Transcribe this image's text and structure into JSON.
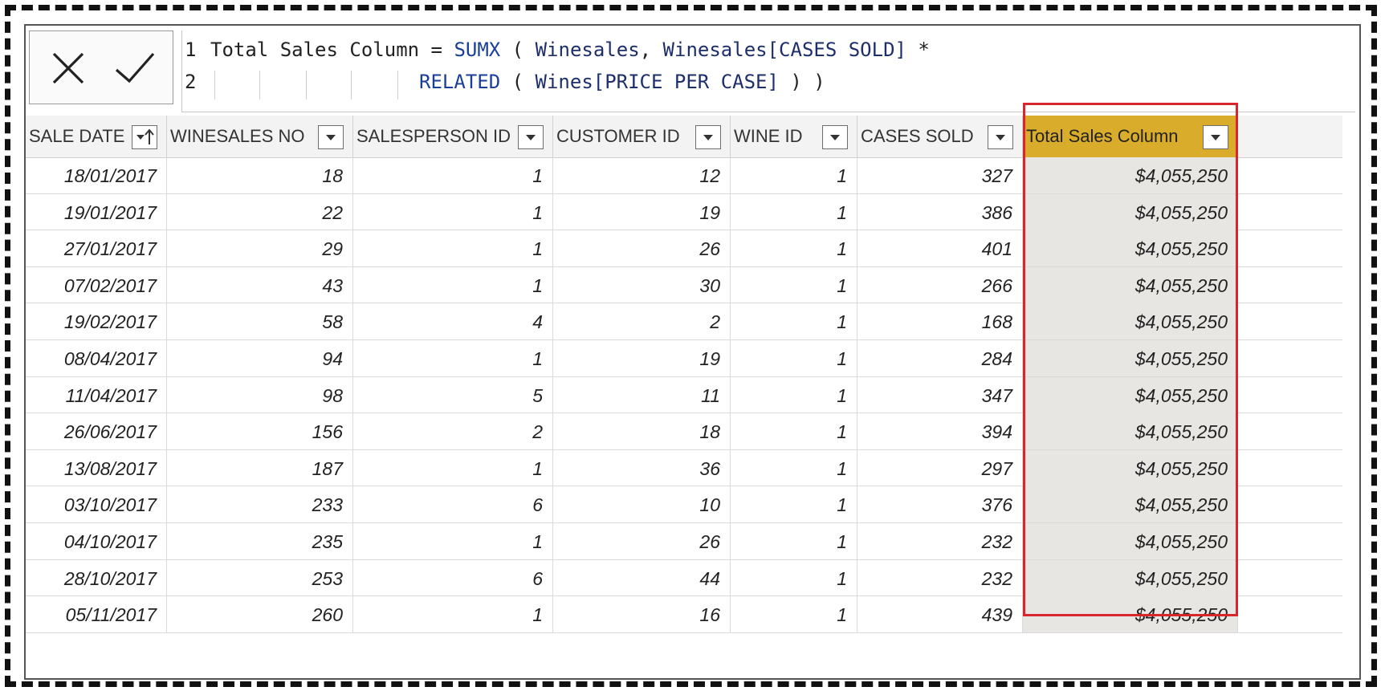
{
  "formula": {
    "line1_num": "1",
    "line1_a": "Total Sales Column = ",
    "line1_fn": "SUMX",
    "line1_b": " ( ",
    "line1_t1": "Winesales",
    "line1_c": ", ",
    "line1_t2": "Winesales[CASES SOLD]",
    "line1_d": " *",
    "line2_num": "2",
    "line2_fn": "RELATED",
    "line2_b": " ( ",
    "line2_t": "Wines[PRICE PER CASE]",
    "line2_c": " ) )"
  },
  "colors": {
    "highlight_header": "#d9ad2b",
    "highlight_cells": "#e8e6e3",
    "selection_outline": "#d9262c"
  },
  "table": {
    "headers": [
      "SALE DATE",
      "WINESALES NO",
      "SALESPERSON ID",
      "CUSTOMER ID",
      "WINE ID",
      "CASES SOLD",
      "Total Sales Column"
    ],
    "rows": [
      [
        "18/01/2017",
        "18",
        "1",
        "12",
        "1",
        "327",
        "$4,055,250"
      ],
      [
        "19/01/2017",
        "22",
        "1",
        "19",
        "1",
        "386",
        "$4,055,250"
      ],
      [
        "27/01/2017",
        "29",
        "1",
        "26",
        "1",
        "401",
        "$4,055,250"
      ],
      [
        "07/02/2017",
        "43",
        "1",
        "30",
        "1",
        "266",
        "$4,055,250"
      ],
      [
        "19/02/2017",
        "58",
        "4",
        "2",
        "1",
        "168",
        "$4,055,250"
      ],
      [
        "08/04/2017",
        "94",
        "1",
        "19",
        "1",
        "284",
        "$4,055,250"
      ],
      [
        "11/04/2017",
        "98",
        "5",
        "11",
        "1",
        "347",
        "$4,055,250"
      ],
      [
        "26/06/2017",
        "156",
        "2",
        "18",
        "1",
        "394",
        "$4,055,250"
      ],
      [
        "13/08/2017",
        "187",
        "1",
        "36",
        "1",
        "297",
        "$4,055,250"
      ],
      [
        "03/10/2017",
        "233",
        "6",
        "10",
        "1",
        "376",
        "$4,055,250"
      ],
      [
        "04/10/2017",
        "235",
        "1",
        "26",
        "1",
        "232",
        "$4,055,250"
      ],
      [
        "28/10/2017",
        "253",
        "6",
        "44",
        "1",
        "232",
        "$4,055,250"
      ],
      [
        "05/11/2017",
        "260",
        "1",
        "16",
        "1",
        "439",
        "$4,055,250"
      ]
    ]
  }
}
